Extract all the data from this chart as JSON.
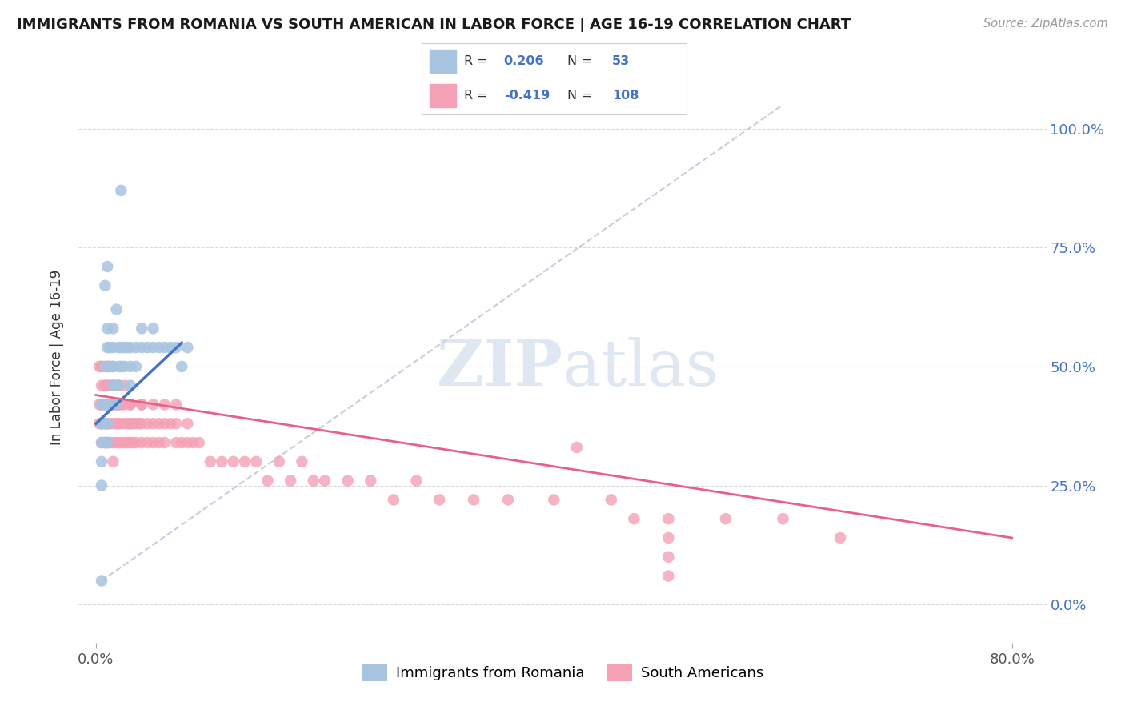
{
  "title": "IMMIGRANTS FROM ROMANIA VS SOUTH AMERICAN IN LABOR FORCE | AGE 16-19 CORRELATION CHART",
  "source": "Source: ZipAtlas.com",
  "ylabel": "In Labor Force | Age 16-19",
  "ytick_values": [
    0.0,
    0.25,
    0.5,
    0.75,
    1.0
  ],
  "ytick_labels": [
    "0.0%",
    "25.0%",
    "50.0%",
    "75.0%",
    "100.0%"
  ],
  "xtick_values": [
    0.0,
    0.8
  ],
  "xtick_labels": [
    "0.0%",
    "80.0%"
  ],
  "xlim": [
    -0.015,
    0.83
  ],
  "ylim": [
    -0.08,
    1.12
  ],
  "romania_R": 0.206,
  "romania_N": 53,
  "southam_R": -0.419,
  "southam_N": 108,
  "romania_color": "#a8c4e0",
  "southam_color": "#f4a0b5",
  "romania_line_color": "#4472c4",
  "southam_line_color": "#e8608a",
  "grid_color": "#d8d8d8",
  "background_color": "#ffffff",
  "legend_text_color": "#4472c4",
  "watermark_color": "#c8d8ea",
  "romania_x": [
    0.005,
    0.005,
    0.005,
    0.005,
    0.005,
    0.008,
    0.008,
    0.008,
    0.008,
    0.01,
    0.01,
    0.01,
    0.01,
    0.01,
    0.012,
    0.012,
    0.012,
    0.015,
    0.015,
    0.015,
    0.015,
    0.015,
    0.018,
    0.018,
    0.018,
    0.02,
    0.02,
    0.02,
    0.022,
    0.022,
    0.025,
    0.025,
    0.028,
    0.03,
    0.03,
    0.03,
    0.035,
    0.035,
    0.04,
    0.04,
    0.045,
    0.05,
    0.05,
    0.055,
    0.06,
    0.065,
    0.07,
    0.075,
    0.08,
    0.022,
    0.005,
    0.008,
    0.01
  ],
  "romania_y": [
    0.42,
    0.38,
    0.34,
    0.3,
    0.25,
    0.42,
    0.38,
    0.34,
    0.5,
    0.42,
    0.38,
    0.34,
    0.54,
    0.58,
    0.42,
    0.5,
    0.54,
    0.42,
    0.46,
    0.5,
    0.54,
    0.58,
    0.42,
    0.46,
    0.62,
    0.46,
    0.5,
    0.54,
    0.5,
    0.54,
    0.5,
    0.54,
    0.54,
    0.46,
    0.5,
    0.54,
    0.5,
    0.54,
    0.54,
    0.58,
    0.54,
    0.54,
    0.58,
    0.54,
    0.54,
    0.54,
    0.54,
    0.5,
    0.54,
    0.87,
    0.05,
    0.67,
    0.71
  ],
  "southam_x": [
    0.003,
    0.003,
    0.005,
    0.005,
    0.005,
    0.005,
    0.005,
    0.008,
    0.008,
    0.008,
    0.008,
    0.01,
    0.01,
    0.01,
    0.01,
    0.01,
    0.012,
    0.012,
    0.012,
    0.012,
    0.015,
    0.015,
    0.015,
    0.015,
    0.015,
    0.015,
    0.018,
    0.018,
    0.018,
    0.02,
    0.02,
    0.02,
    0.02,
    0.022,
    0.022,
    0.022,
    0.025,
    0.025,
    0.025,
    0.028,
    0.028,
    0.03,
    0.03,
    0.03,
    0.032,
    0.032,
    0.035,
    0.035,
    0.038,
    0.04,
    0.04,
    0.04,
    0.045,
    0.045,
    0.05,
    0.05,
    0.055,
    0.055,
    0.06,
    0.06,
    0.065,
    0.07,
    0.07,
    0.075,
    0.08,
    0.085,
    0.09,
    0.1,
    0.11,
    0.12,
    0.13,
    0.14,
    0.15,
    0.16,
    0.17,
    0.18,
    0.19,
    0.2,
    0.22,
    0.24,
    0.26,
    0.28,
    0.3,
    0.33,
    0.36,
    0.4,
    0.45,
    0.47,
    0.5,
    0.55,
    0.6,
    0.65,
    0.42,
    0.5,
    0.5,
    0.5,
    0.003,
    0.005,
    0.01,
    0.015,
    0.02,
    0.025,
    0.03,
    0.04,
    0.05,
    0.06,
    0.07,
    0.08
  ],
  "southam_y": [
    0.42,
    0.38,
    0.42,
    0.38,
    0.34,
    0.46,
    0.5,
    0.42,
    0.38,
    0.34,
    0.46,
    0.42,
    0.38,
    0.34,
    0.46,
    0.5,
    0.42,
    0.38,
    0.34,
    0.46,
    0.42,
    0.38,
    0.34,
    0.46,
    0.5,
    0.3,
    0.42,
    0.38,
    0.34,
    0.42,
    0.38,
    0.34,
    0.46,
    0.42,
    0.38,
    0.34,
    0.38,
    0.34,
    0.42,
    0.38,
    0.34,
    0.38,
    0.34,
    0.42,
    0.38,
    0.34,
    0.38,
    0.34,
    0.38,
    0.38,
    0.34,
    0.42,
    0.38,
    0.34,
    0.38,
    0.34,
    0.38,
    0.34,
    0.38,
    0.34,
    0.38,
    0.38,
    0.34,
    0.34,
    0.34,
    0.34,
    0.34,
    0.3,
    0.3,
    0.3,
    0.3,
    0.3,
    0.26,
    0.3,
    0.26,
    0.3,
    0.26,
    0.26,
    0.26,
    0.26,
    0.22,
    0.26,
    0.22,
    0.22,
    0.22,
    0.22,
    0.22,
    0.18,
    0.18,
    0.18,
    0.18,
    0.14,
    0.33,
    0.06,
    0.1,
    0.14,
    0.5,
    0.5,
    0.5,
    0.46,
    0.46,
    0.46,
    0.42,
    0.42,
    0.42,
    0.42,
    0.42,
    0.38
  ]
}
